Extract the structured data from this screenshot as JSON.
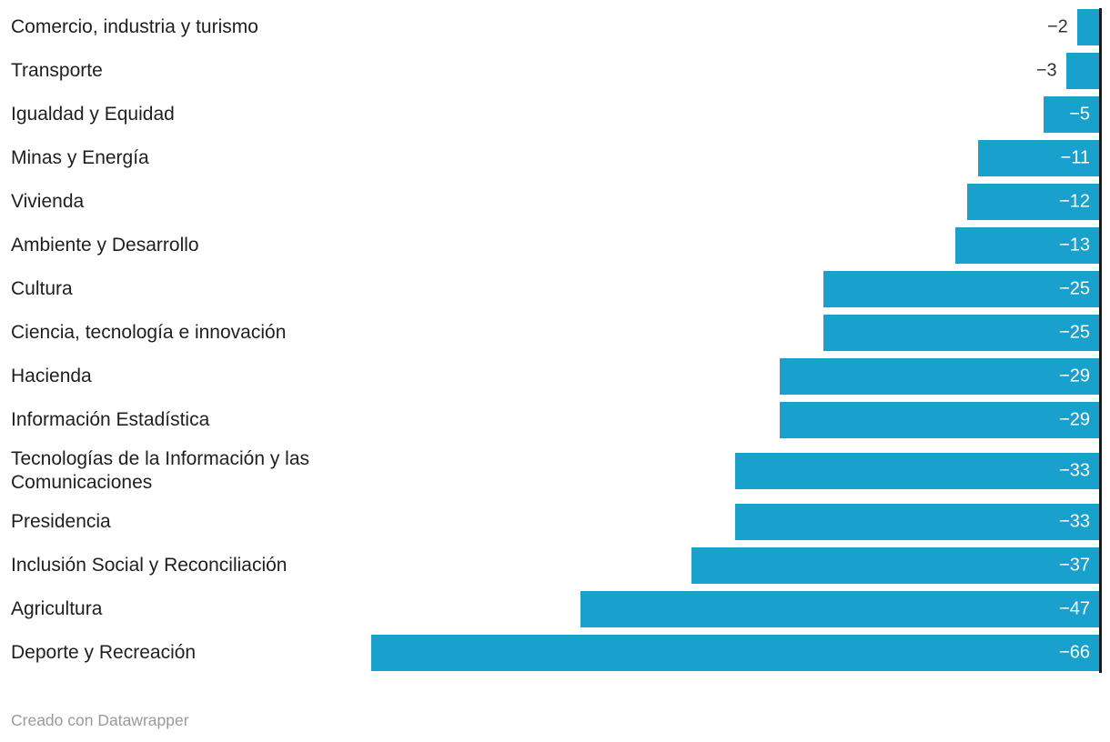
{
  "chart_data": {
    "type": "bar",
    "orientation": "horizontal",
    "title": "",
    "xlabel": "",
    "ylabel": "",
    "xlim": [
      -66,
      0
    ],
    "grid": false,
    "legend": false,
    "bar_color": "#18a1cc",
    "axis_color": "#1a1a1a",
    "value_label_inside_color": "#ffffff",
    "value_label_outside_color": "#333333",
    "categories": [
      "Comercio, industria y turismo",
      "Transporte",
      "Igualdad y Equidad",
      "Minas y Energía",
      "Vivienda",
      "Ambiente y Desarrollo",
      "Cultura",
      "Ciencia, tecnología e innovación",
      "Hacienda",
      "Información Estadística",
      "Tecnologías de la Información y las Comunicaciones",
      "Presidencia",
      "Inclusión Social y Reconciliación",
      "Agricultura",
      "Deporte y Recreación"
    ],
    "values": [
      -2,
      -3,
      -5,
      -11,
      -12,
      -13,
      -25,
      -25,
      -29,
      -29,
      -33,
      -33,
      -37,
      -47,
      -66
    ],
    "items": [
      {
        "label": "Comercio, industria y turismo",
        "value": -2,
        "display": "−2"
      },
      {
        "label": "Transporte",
        "value": -3,
        "display": "−3"
      },
      {
        "label": "Igualdad y Equidad",
        "value": -5,
        "display": "−5"
      },
      {
        "label": "Minas y Energía",
        "value": -11,
        "display": "−11"
      },
      {
        "label": "Vivienda",
        "value": -12,
        "display": "−12"
      },
      {
        "label": "Ambiente y Desarrollo",
        "value": -13,
        "display": "−13"
      },
      {
        "label": "Cultura",
        "value": -25,
        "display": "−25"
      },
      {
        "label": "Ciencia, tecnología e innovación",
        "value": -25,
        "display": "−25"
      },
      {
        "label": "Hacienda",
        "value": -29,
        "display": "−29"
      },
      {
        "label": "Información Estadística",
        "value": -29,
        "display": "−29"
      },
      {
        "label": "Tecnologías de la Información y las Comunicaciones",
        "value": -33,
        "display": "−33"
      },
      {
        "label": "Presidencia",
        "value": -33,
        "display": "−33"
      },
      {
        "label": "Inclusión Social y Reconciliación",
        "value": -37,
        "display": "−37"
      },
      {
        "label": "Agricultura",
        "value": -47,
        "display": "−47"
      },
      {
        "label": "Deporte y Recreación",
        "value": -66,
        "display": "−66"
      }
    ]
  },
  "footer": {
    "credit": "Creado con Datawrapper"
  }
}
